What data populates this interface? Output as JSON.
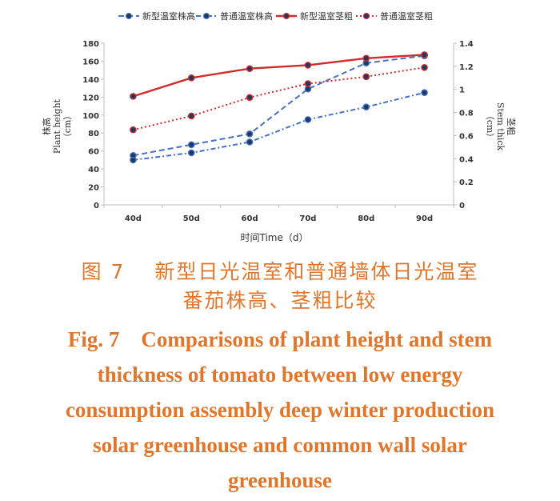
{
  "chart_data": {
    "type": "line",
    "categories": [
      "40d",
      "50d",
      "60d",
      "70d",
      "80d",
      "90d"
    ],
    "xlabel": "时间Time（d）",
    "ylabel_left": [
      "株高",
      "Plant height",
      "（cm）"
    ],
    "ylabel_right": [
      "茎粗",
      "Stem thick",
      "（cm）"
    ],
    "ylim_left": [
      0,
      180
    ],
    "yticks_left": [
      "0",
      "20",
      "40",
      "60",
      "80",
      "100",
      "120",
      "140",
      "160",
      "180"
    ],
    "ylim_right": [
      0,
      1.4
    ],
    "yticks_right": [
      "0",
      "0.2",
      "0.4",
      "0.6",
      "0.8",
      "1",
      "1.2",
      "1.4"
    ],
    "grid": false,
    "legend_position": "top",
    "series": [
      {
        "name": "新型温室株高",
        "axis": "left",
        "color": "#4472c4",
        "style": "dashed",
        "values": [
          55,
          67,
          79,
          129,
          158,
          166
        ]
      },
      {
        "name": "普通温室株高",
        "axis": "left",
        "color": "#4472c4",
        "style": "dash-dot",
        "values": [
          50,
          58,
          70,
          95,
          109,
          125
        ]
      },
      {
        "name": "新型温室茎粗",
        "axis": "right",
        "color": "#d42a2a",
        "style": "solid",
        "values": [
          0.94,
          1.1,
          1.18,
          1.21,
          1.27,
          1.3
        ]
      },
      {
        "name": "普通温室茎粗",
        "axis": "right",
        "color": "#d42a2a",
        "style": "dotted",
        "values": [
          0.65,
          0.77,
          0.93,
          1.05,
          1.11,
          1.19
        ]
      }
    ]
  },
  "caption": {
    "cn_line1": "图 7　 新型日光温室和普通墙体日光温室",
    "cn_line2": "番茄株高、茎粗比较",
    "en_lines": [
      "Fig. 7　Comparisons of plant height and stem",
      "thickness of tomato between low energy",
      "consumption assembly deep winter production",
      "solar greenhouse and common wall solar",
      "greenhouse"
    ]
  },
  "colors": {
    "caption": "#e0762b",
    "axis": "#bfbfbf",
    "text": "#333333"
  }
}
